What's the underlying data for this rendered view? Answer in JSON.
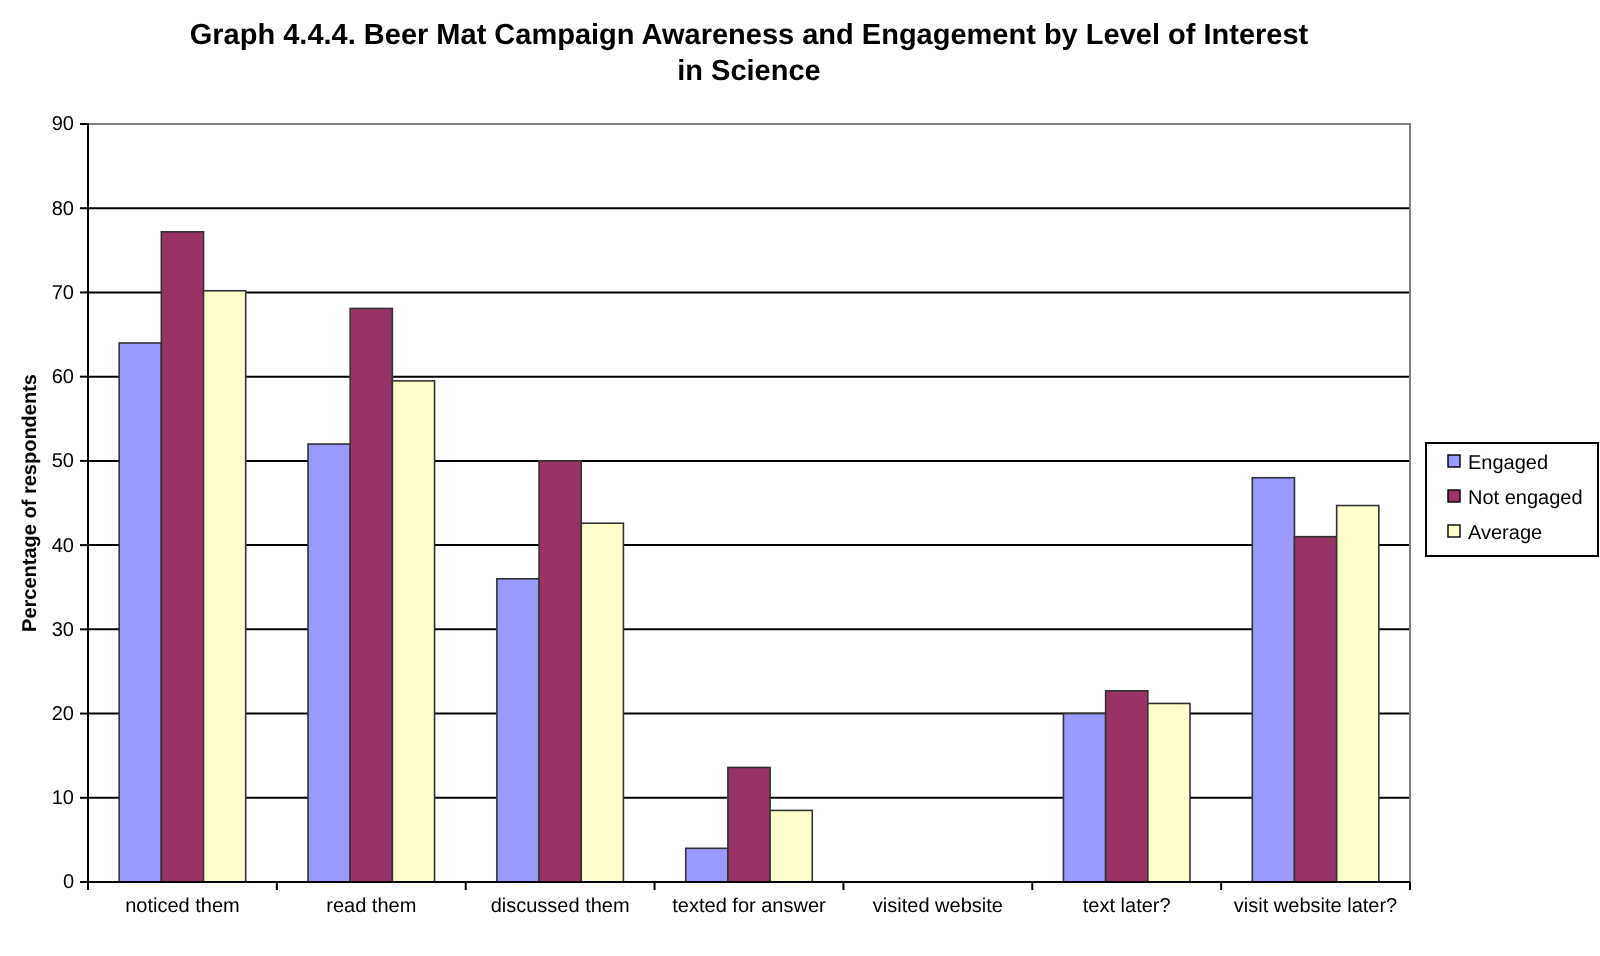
{
  "chart_data": {
    "type": "bar",
    "title": "Graph 4.4.4. Beer Mat Campaign Awareness and Engagement by Level of Interest in Science",
    "ylabel": "Percentage of respondents",
    "categories": [
      "noticed them",
      "read them",
      "discussed them",
      "texted for answer",
      "visited website",
      "text later?",
      "visit website later?"
    ],
    "series": [
      {
        "name": "Engaged",
        "color": "#9999ff",
        "values": [
          64,
          52,
          36,
          4,
          0,
          20,
          48
        ]
      },
      {
        "name": "Not engaged",
        "color": "#993366",
        "values": [
          77.2,
          68.1,
          50,
          13.6,
          0,
          22.7,
          41
        ]
      },
      {
        "name": "Average",
        "color": "#ffffcc",
        "values": [
          70.2,
          59.5,
          42.6,
          8.5,
          0,
          21.2,
          44.7
        ]
      }
    ],
    "ylim": [
      0,
      90
    ],
    "yticks": [
      0,
      10,
      20,
      30,
      40,
      50,
      60,
      70,
      80,
      90
    ],
    "grid": "y",
    "legend": "right"
  }
}
